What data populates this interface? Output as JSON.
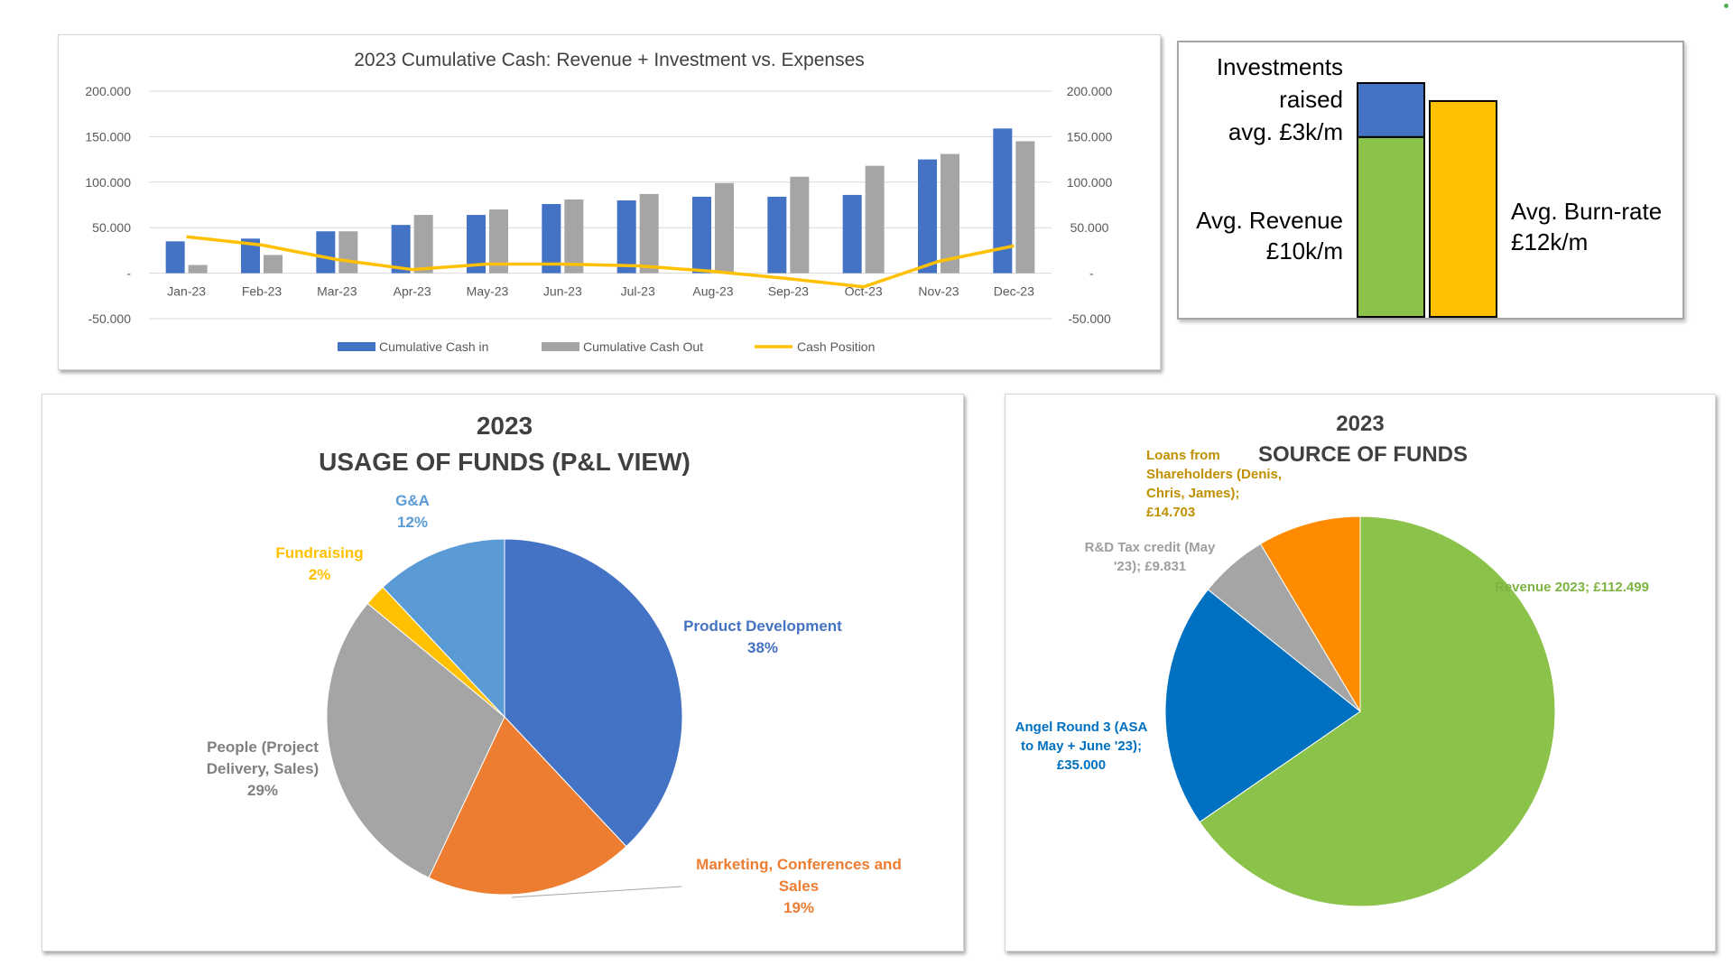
{
  "colors": {
    "cash_in": "#4472c4",
    "cash_out": "#a5a5a5",
    "cash_position": "#ffc000",
    "grid": "#d9d9d9",
    "axis_text": "#595959",
    "title_text": "#404040",
    "pie_product": "#4472c4",
    "pie_marketing": "#ed7d31",
    "pie_people": "#a5a5a5",
    "pie_fundraising": "#ffc000",
    "pie_ga": "#5b9bd5",
    "src_revenue": "#8bc34a",
    "src_angel": "#0070c0",
    "src_rd": "#a5a5a5",
    "src_loans": "#ff8c00",
    "avg_investment": "#4472c4",
    "avg_revenue": "#8bc34a",
    "avg_burn": "#ffc000"
  },
  "chart_data": [
    {
      "id": "cumulative-cash",
      "type": "bar",
      "title": "2023 Cumulative Cash: Revenue + Investment vs. Expenses",
      "categories": [
        "Jan-23",
        "Feb-23",
        "Mar-23",
        "Apr-23",
        "May-23",
        "Jun-23",
        "Jul-23",
        "Aug-23",
        "Sep-23",
        "Oct-23",
        "Nov-23",
        "Dec-23"
      ],
      "series": [
        {
          "name": "Cumulative Cash in",
          "type": "bar",
          "values": [
            35000,
            38000,
            46000,
            53000,
            64000,
            76000,
            80000,
            84000,
            84000,
            86000,
            125000,
            159000
          ]
        },
        {
          "name": "Cumulative Cash Out",
          "type": "bar",
          "values": [
            9000,
            20000,
            46000,
            64000,
            70000,
            81000,
            87000,
            99000,
            106000,
            118000,
            131000,
            145000
          ]
        },
        {
          "name": "Cash Position",
          "type": "line",
          "values": [
            40000,
            31000,
            15000,
            4000,
            10000,
            10000,
            8000,
            2000,
            -6000,
            -15000,
            13000,
            30000
          ]
        }
      ],
      "ylim": [
        -50000,
        200000
      ],
      "yticks": [
        -50000,
        0,
        50000,
        100000,
        150000,
        200000
      ],
      "ytick_labels": [
        "-50.000",
        "-",
        "50.000",
        "100.000",
        "150.000",
        "200.000"
      ],
      "secondary_y": true,
      "grid": true,
      "legend": "bottom",
      "xlabel": "",
      "ylabel": ""
    },
    {
      "id": "average-rates",
      "type": "bar",
      "stacked": true,
      "categories": [
        "",
        ""
      ],
      "series": [
        {
          "values": [
            10,
            0
          ]
        },
        {
          "values": [
            3,
            0
          ]
        },
        {
          "values": [
            0,
            12
          ]
        }
      ],
      "annotations": {
        "investments": [
          "Investments",
          "raised",
          "avg. £3k/m"
        ],
        "revenue": [
          "Avg. Revenue",
          "£10k/m"
        ],
        "burn": [
          "Avg. Burn-rate",
          "£12k/m"
        ]
      }
    },
    {
      "id": "usage-of-funds",
      "type": "pie",
      "title": [
        "2023",
        "USAGE OF FUNDS (P&L VIEW)"
      ],
      "slices": [
        {
          "label": [
            "Product Development"
          ],
          "pct_label": "38%",
          "value": 38
        },
        {
          "label": [
            "Marketing, Conferences and",
            "Sales"
          ],
          "pct_label": "19%",
          "value": 19
        },
        {
          "label": [
            "People (Project",
            "Delivery, Sales)"
          ],
          "pct_label": "29%",
          "value": 29
        },
        {
          "label": [
            "Fundraising"
          ],
          "pct_label": "2%",
          "value": 2
        },
        {
          "label": [
            "G&A"
          ],
          "pct_label": "12%",
          "value": 12
        }
      ],
      "legend": "none"
    },
    {
      "id": "source-of-funds",
      "type": "pie",
      "title": [
        "2023",
        "SOURCE OF FUNDS"
      ],
      "slices": [
        {
          "label": [
            "Revenue 2023;  £112.499"
          ],
          "value": 112499
        },
        {
          "label": [
            "Angel Round 3 (ASA",
            "to May + June '23);",
            "£35.000"
          ],
          "value": 35000
        },
        {
          "label": [
            "R&D Tax credit (May",
            "'23);  £9.831"
          ],
          "value": 9831
        },
        {
          "label": [
            "Loans from",
            "Shareholders (Denis,",
            "Chris, James);",
            "£14.703"
          ],
          "value": 14703
        }
      ],
      "legend": "none"
    }
  ]
}
